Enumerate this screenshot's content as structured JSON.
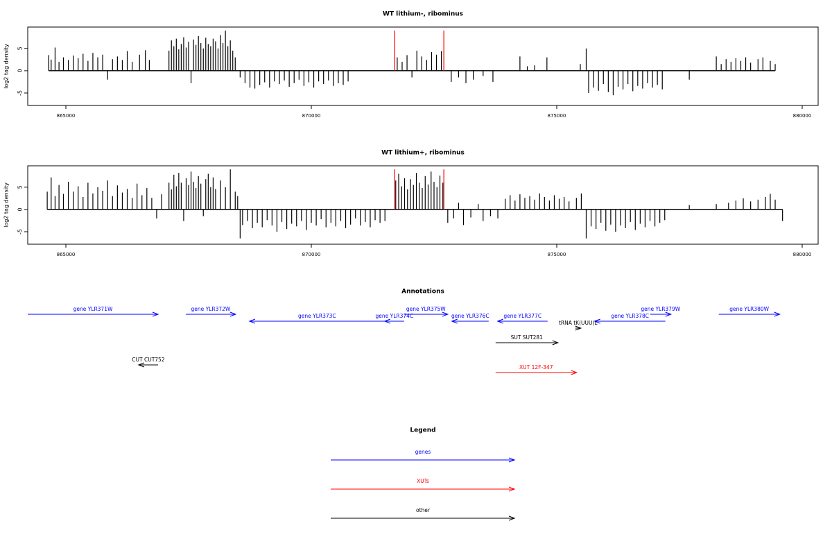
{
  "chart_data": [
    {
      "type": "bar",
      "title": "WT lithium-, ribominus",
      "ylabel": "log2 tag density",
      "xlim": [
        864223,
        880325
      ],
      "xticks": [
        865000,
        870000,
        875000,
        880000
      ],
      "ylim": [
        -7.8,
        9.8
      ],
      "yticks": [
        -5,
        0,
        5
      ],
      "series": [
        {
          "color": "#000000",
          "x": [
            864650,
            864700,
            864780,
            864860,
            864950,
            865050,
            865150,
            865250,
            865350,
            865450,
            865550,
            865650,
            865750,
            865850,
            865950,
            866050,
            866150,
            866250,
            866350,
            866500,
            866620,
            866700,
            867100,
            867150,
            867200,
            867250,
            867300,
            867350,
            867400,
            867450,
            867500,
            867550,
            867600,
            867650,
            867700,
            867750,
            867800,
            867850,
            867900,
            867950,
            868000,
            868050,
            868100,
            868150,
            868200,
            868250,
            868300,
            868350,
            868400,
            868450,
            868550,
            868650,
            868750,
            868850,
            868950,
            869050,
            869150,
            869250,
            869350,
            869450,
            869550,
            869650,
            869750,
            869850,
            869950,
            870050,
            870150,
            870250,
            870350,
            870450,
            870550,
            870650,
            870750,
            871750,
            871850,
            871950,
            872050,
            872150,
            872250,
            872350,
            872450,
            872550,
            872650,
            872850,
            873000,
            873150,
            873300,
            873500,
            873700,
            874250,
            874400,
            874550,
            874800,
            875480,
            875600,
            875650,
            875750,
            875850,
            875950,
            876050,
            876150,
            876250,
            876350,
            876450,
            876550,
            876650,
            876750,
            876850,
            876950,
            877050,
            877150,
            877700,
            878250,
            878350,
            878450,
            878550,
            878650,
            878750,
            878850,
            878950,
            879100,
            879200,
            879350,
            879450
          ],
          "values": [
            3.5,
            2.5,
            5.2,
            2.0,
            3.0,
            2.4,
            3.4,
            2.8,
            3.8,
            2.2,
            4.0,
            3.0,
            3.6,
            -2.0,
            2.6,
            3.2,
            2.4,
            4.4,
            2.0,
            3.6,
            4.6,
            2.4,
            4.5,
            6.8,
            5.5,
            7.2,
            4.8,
            6.0,
            7.5,
            5.2,
            6.5,
            -2.8,
            7.0,
            5.8,
            7.8,
            6.2,
            5.0,
            7.4,
            6.0,
            5.5,
            7.2,
            6.6,
            5.0,
            8.0,
            6.2,
            9.0,
            5.5,
            6.8,
            4.5,
            3.0,
            -1.5,
            -2.8,
            -3.8,
            -4.0,
            -3.2,
            -2.6,
            -3.8,
            -2.4,
            -3.0,
            -2.2,
            -3.6,
            -2.8,
            -2.0,
            -3.4,
            -2.6,
            -3.8,
            -2.4,
            -3.0,
            -2.2,
            -3.4,
            -2.8,
            -3.2,
            -2.4,
            3.0,
            2.0,
            3.5,
            -1.5,
            4.5,
            3.2,
            2.4,
            4.2,
            3.6,
            4.4,
            -2.5,
            -1.5,
            -2.8,
            -2.0,
            -1.2,
            -2.5,
            3.2,
            1.0,
            1.2,
            3.0,
            1.5,
            5.0,
            -5.0,
            -3.8,
            -4.5,
            -3.0,
            -4.8,
            -5.5,
            -3.6,
            -4.2,
            -3.0,
            -4.6,
            -3.4,
            -4.0,
            -2.8,
            -3.8,
            -3.2,
            -4.2,
            -2.0,
            3.2,
            1.5,
            2.6,
            2.0,
            2.8,
            2.2,
            3.0,
            1.8,
            2.6,
            3.0,
            2.2,
            1.5
          ]
        },
        {
          "color": "#ff0000",
          "x": [
            871700,
            872700
          ],
          "values": [
            9.0,
            9.0
          ]
        }
      ]
    },
    {
      "type": "bar",
      "title": "WT lithium+, ribominus",
      "ylabel": "log2 tag density",
      "xlim": [
        864223,
        880325
      ],
      "xticks": [
        865000,
        870000,
        875000,
        880000
      ],
      "ylim": [
        -7.8,
        9.8
      ],
      "yticks": [
        -5,
        0,
        5
      ],
      "series": [
        {
          "color": "#000000",
          "x": [
            864620,
            864700,
            864780,
            864860,
            864950,
            865050,
            865150,
            865250,
            865350,
            865450,
            865550,
            865650,
            865750,
            865850,
            865950,
            866050,
            866150,
            866250,
            866350,
            866450,
            866550,
            866650,
            866750,
            866850,
            866950,
            867100,
            867150,
            867200,
            867250,
            867300,
            867350,
            867400,
            867450,
            867500,
            867550,
            867600,
            867650,
            867700,
            867750,
            867800,
            867850,
            867900,
            867950,
            868000,
            868050,
            868150,
            868250,
            868350,
            868450,
            868500,
            868550,
            868600,
            868700,
            868800,
            868900,
            869000,
            869100,
            869200,
            869300,
            869400,
            869500,
            869600,
            869700,
            869800,
            869900,
            870000,
            870100,
            870200,
            870300,
            870400,
            870500,
            870600,
            870700,
            870800,
            870900,
            871000,
            871100,
            871200,
            871300,
            871400,
            871500,
            871720,
            871780,
            871840,
            871900,
            871960,
            872020,
            872080,
            872140,
            872200,
            872260,
            872320,
            872380,
            872440,
            872500,
            872560,
            872620,
            872680,
            872780,
            872900,
            873000,
            873100,
            873250,
            873400,
            873500,
            873650,
            873800,
            873950,
            874050,
            874150,
            874250,
            874350,
            874450,
            874550,
            874650,
            874750,
            874850,
            874950,
            875050,
            875150,
            875250,
            875400,
            875500,
            875600,
            875700,
            875800,
            875900,
            876000,
            876100,
            876200,
            876300,
            876400,
            876500,
            876600,
            876700,
            876800,
            876900,
            877000,
            877100,
            877200,
            877700,
            878250,
            878500,
            878650,
            878800,
            878950,
            879100,
            879250,
            879350,
            879450,
            879600
          ],
          "values": [
            4.0,
            7.2,
            3.0,
            5.5,
            3.5,
            6.2,
            4.0,
            5.2,
            2.8,
            6.0,
            3.6,
            5.0,
            4.2,
            6.5,
            3.0,
            5.4,
            3.8,
            4.6,
            2.6,
            5.8,
            3.2,
            4.8,
            2.6,
            -2.0,
            3.4,
            6.0,
            4.5,
            7.8,
            5.2,
            8.2,
            6.0,
            -2.6,
            7.0,
            5.5,
            8.5,
            6.2,
            4.8,
            7.5,
            5.8,
            -1.5,
            6.8,
            8.0,
            5.0,
            7.2,
            4.6,
            6.5,
            5.0,
            9.0,
            4.0,
            3.0,
            -6.5,
            -3.5,
            -2.6,
            -4.2,
            -3.0,
            -4.0,
            -2.4,
            -3.6,
            -5.0,
            -2.8,
            -4.4,
            -3.2,
            -3.8,
            -2.6,
            -4.6,
            -3.0,
            -3.6,
            -2.2,
            -4.0,
            -3.0,
            -3.8,
            -2.6,
            -4.2,
            -3.4,
            -2.0,
            -3.6,
            -2.8,
            -4.0,
            -2.4,
            -3.0,
            -2.6,
            6.5,
            8.0,
            5.2,
            7.0,
            4.5,
            6.8,
            5.5,
            8.2,
            6.0,
            4.8,
            7.5,
            5.6,
            8.5,
            6.2,
            5.0,
            7.6,
            6.0,
            -3.0,
            -2.0,
            1.5,
            -3.5,
            -1.8,
            1.2,
            -2.6,
            -1.5,
            -2.0,
            2.4,
            3.2,
            2.0,
            3.4,
            2.6,
            3.0,
            2.2,
            3.6,
            2.8,
            2.0,
            3.2,
            2.4,
            2.8,
            1.8,
            2.6,
            3.6,
            -6.5,
            -3.8,
            -4.4,
            -3.0,
            -4.8,
            -3.4,
            -5.0,
            -3.6,
            -4.2,
            -2.8,
            -4.6,
            -3.2,
            -4.0,
            -2.6,
            -3.8,
            -3.0,
            -2.4,
            1.0,
            1.2,
            1.5,
            2.0,
            2.5,
            1.8,
            2.2,
            2.8,
            3.5,
            2.2,
            -2.6
          ]
        },
        {
          "color": "#ff0000",
          "x": [
            871700,
            872700
          ],
          "values": [
            9.0,
            9.0
          ]
        }
      ]
    },
    {
      "type": "annotation",
      "title": "Annotations",
      "xlim": [
        864223,
        880325
      ],
      "features": [
        {
          "label": "gene YLR371W",
          "color": "#0000ff",
          "start": 862811,
          "end": 866878
        },
        {
          "label": "gene YLR372W",
          "color": "#0000ff",
          "start": 867442,
          "end": 868459
        },
        {
          "label": "gene YLR373C",
          "color": "#0000ff",
          "start": 871495,
          "end": 868741
        },
        {
          "label": "gene YLR374C",
          "color": "#0000ff",
          "start": 871890,
          "end": 871495
        },
        {
          "label": "gene YLR375W",
          "color": "#0000ff",
          "start": 871890,
          "end": 872780
        },
        {
          "label": "gene YLR376C",
          "color": "#0000ff",
          "start": 873613,
          "end": 872864
        },
        {
          "label": "gene YLR377C",
          "color": "#0000ff",
          "start": 874813,
          "end": 873796
        },
        {
          "label": "tRNA tK(UUU)L",
          "color": "#000000",
          "start": 875378,
          "end": 875491
        },
        {
          "label": "gene YLR378C",
          "color": "#0000ff",
          "start": 877213,
          "end": 875773
        },
        {
          "label": "gene YLR379W",
          "color": "#0000ff",
          "start": 876903,
          "end": 877327
        },
        {
          "label": "gene YLR380W",
          "color": "#0000ff",
          "start": 878301,
          "end": 879543
        },
        {
          "label": "SUT SUT281",
          "color": "#000000",
          "start": 873754,
          "end": 875025
        },
        {
          "label": "CUT CUT752",
          "color": "#000000",
          "start": 866878,
          "end": 866482
        },
        {
          "label": "XUT 12F-347",
          "color": "#ff0000",
          "start": 873754,
          "end": 875406
        }
      ],
      "legend": {
        "title": "Legend",
        "items": [
          {
            "name": "genes",
            "color": "#0000ff"
          },
          {
            "name": "XUTs",
            "color": "#ff0000"
          },
          {
            "name": "other",
            "color": "#000000"
          }
        ]
      }
    }
  ]
}
